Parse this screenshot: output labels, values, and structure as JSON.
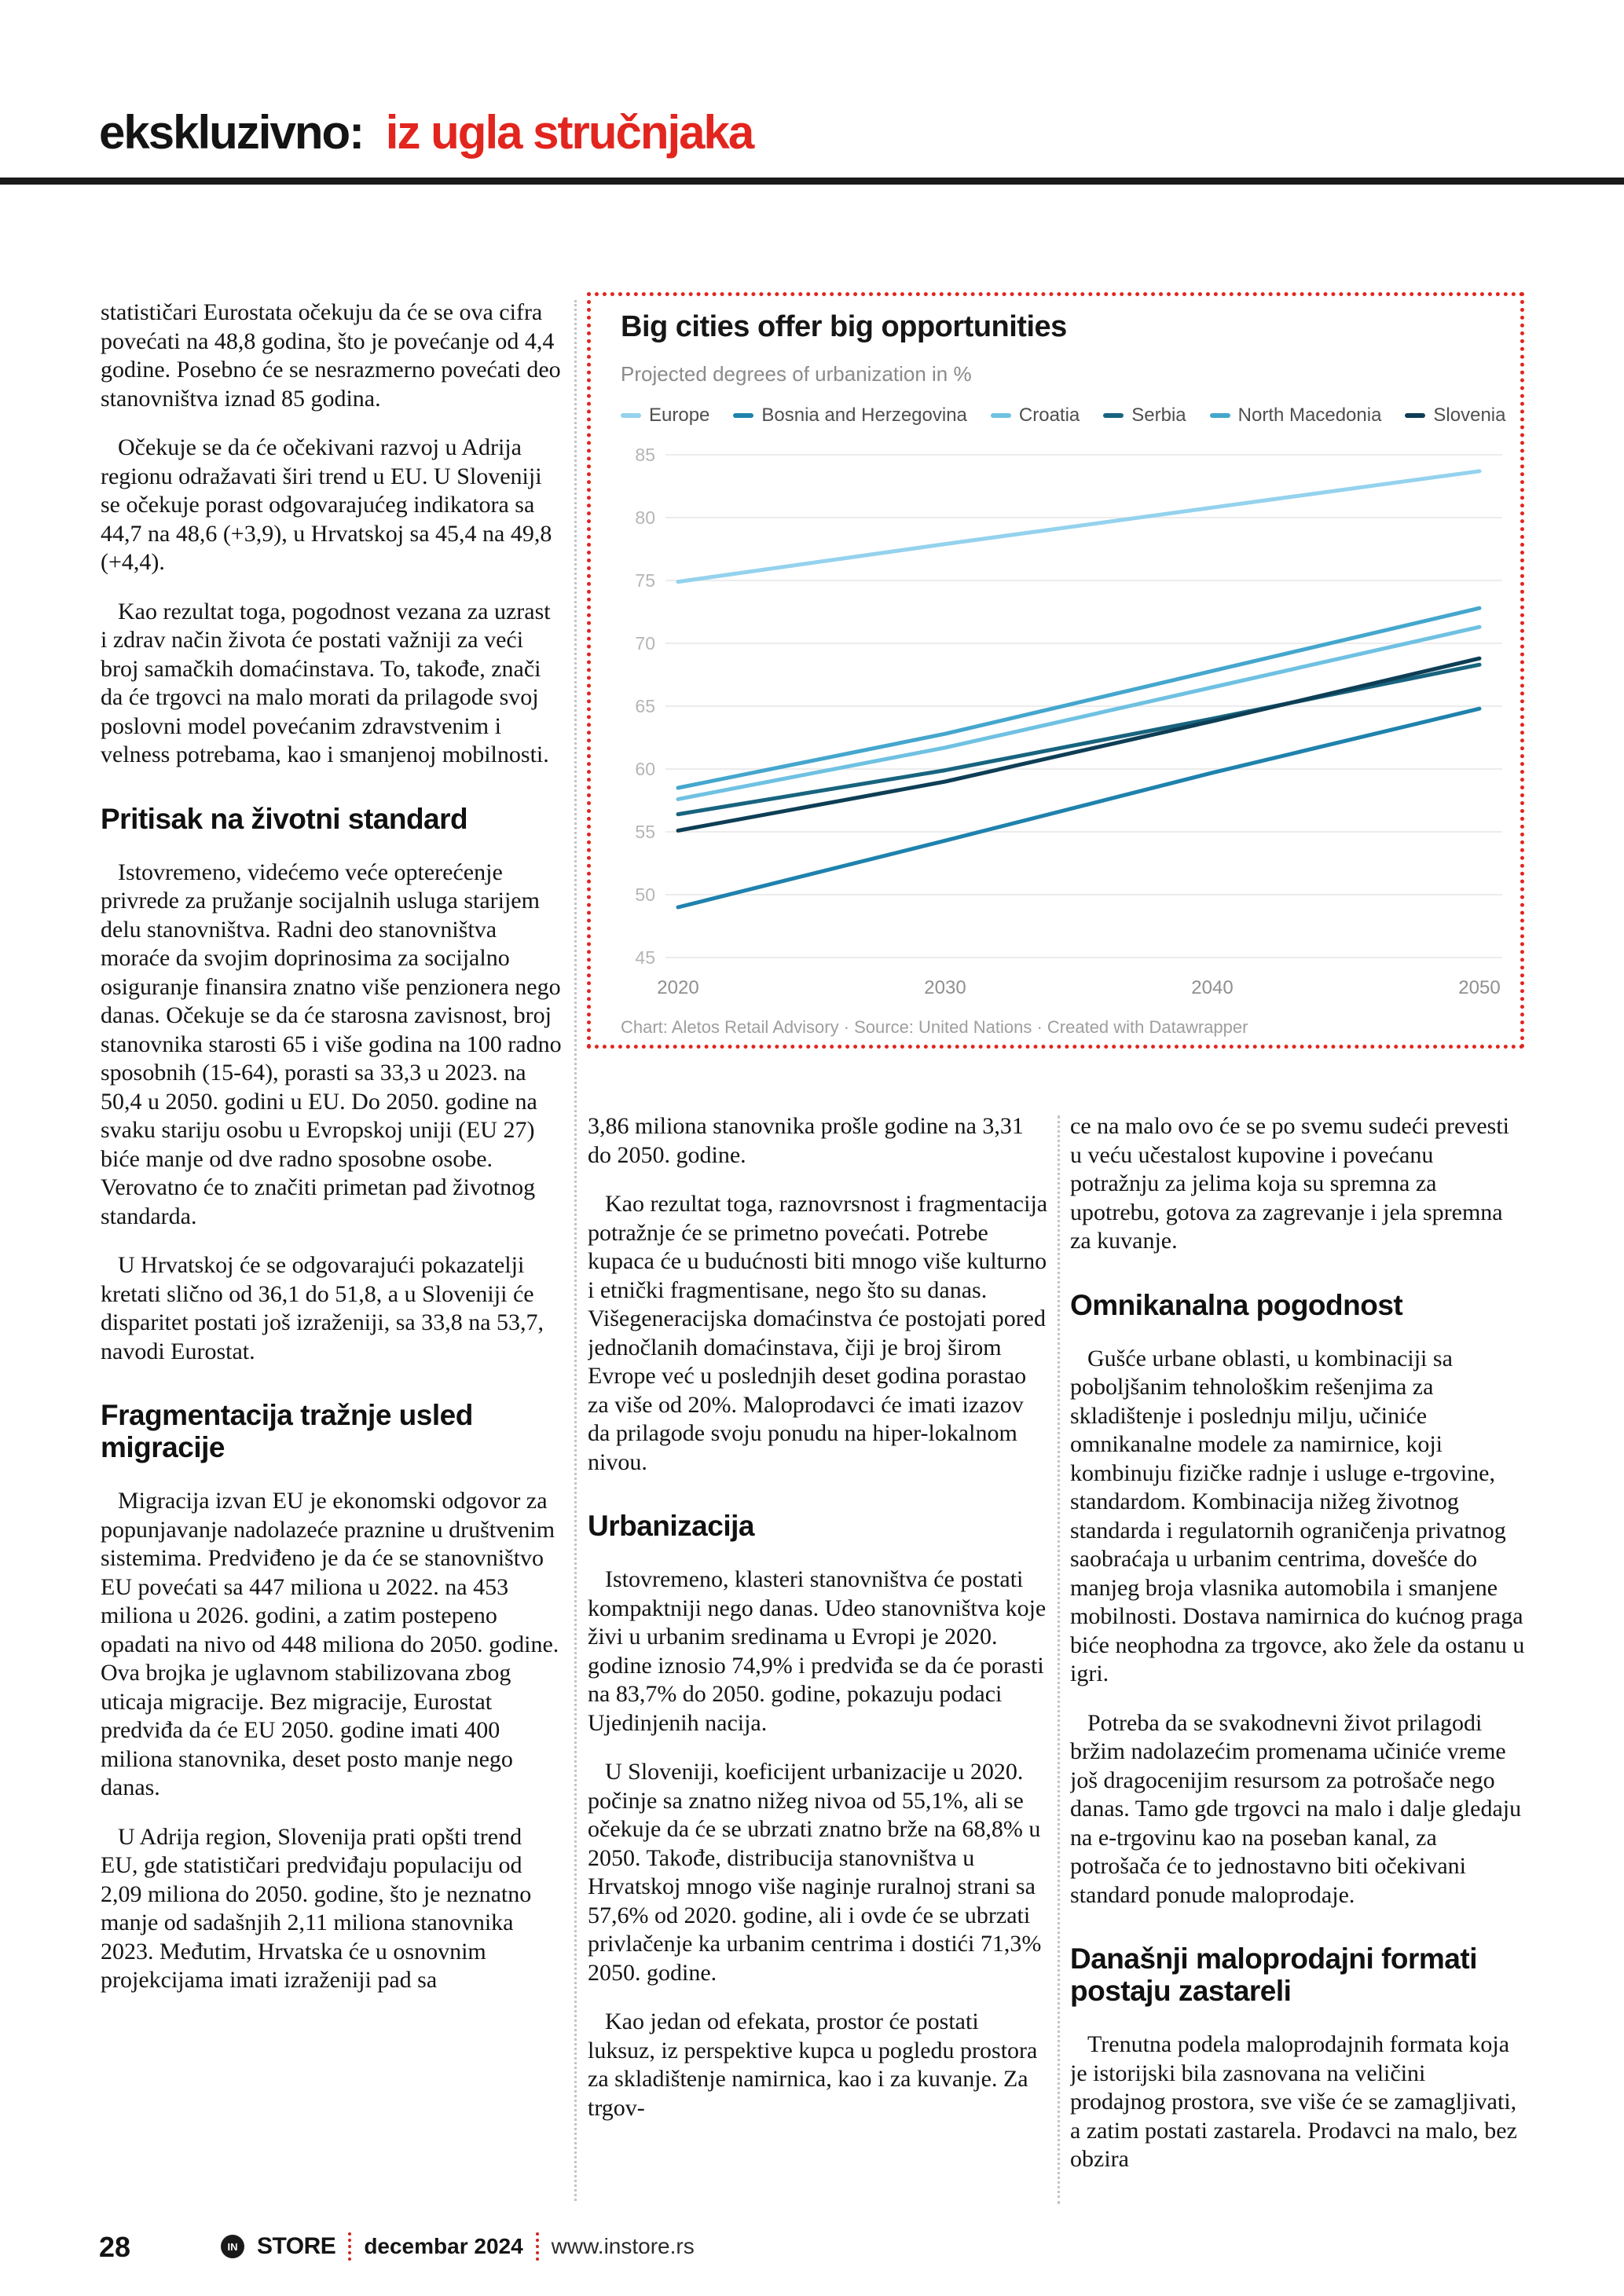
{
  "header": {
    "black_text": "ekskluzivno:",
    "red_text": "iz ugla stručnjaka",
    "accent_color": "#e2251e"
  },
  "chart_data": {
    "type": "line",
    "title": "Big cities offer big opportunities",
    "subtitle": "Projected degrees of urbanization in %",
    "caption": "Chart: Aletos Retail Advisory · Source: United Nations · Created with Datawrapper",
    "x": [
      2020,
      2030,
      2040,
      2050
    ],
    "xlabel": "",
    "ylabel": "",
    "ylim": [
      45,
      85
    ],
    "yticks": [
      45,
      50,
      55,
      60,
      65,
      70,
      75,
      80,
      85
    ],
    "grid": true,
    "legend_position": "top",
    "border_color": "#e2251e",
    "series": [
      {
        "name": "Europe",
        "color": "#94d2ed",
        "values": [
          74.9,
          77.9,
          80.8,
          83.7
        ]
      },
      {
        "name": "Bosnia and Herzegovina",
        "color": "#1f82ad",
        "values": [
          49.0,
          54.3,
          59.7,
          64.8
        ]
      },
      {
        "name": "Croatia",
        "color": "#6fc1e2",
        "values": [
          57.6,
          61.7,
          66.5,
          71.3
        ]
      },
      {
        "name": "Serbia",
        "color": "#18647f",
        "values": [
          56.4,
          59.9,
          64.0,
          68.3
        ]
      },
      {
        "name": "North Macedonia",
        "color": "#45a6cd",
        "values": [
          58.5,
          62.8,
          67.8,
          72.8
        ]
      },
      {
        "name": "Slovenia",
        "color": "#0e3e55",
        "values": [
          55.1,
          59.0,
          63.8,
          68.8
        ]
      }
    ]
  },
  "article": {
    "columns": [
      {
        "blocks": [
          {
            "t": "p",
            "cont": true,
            "text": "statističari Eurostata očekuju da će se ova cifra povećati na 48,8 godina, što je povećanje od 4,4 godine. Posebno će se nesrazmerno povećati deo stanovništva iznad 85 godina."
          },
          {
            "t": "p",
            "text": "Očekuje se da će očekivani razvoj u Adrija regionu odražavati širi trend u EU. U Sloveniji se očekuje porast odgovarajućeg indikatora sa 44,7 na 48,6 (+3,9), u Hrvatskoj sa 45,4 na 49,8 (+4,4)."
          },
          {
            "t": "p",
            "text": "Kao rezultat toga, pogodnost vezana za uzrast i zdrav način života će postati važniji za veći broj samačkih domaćinstava. To, takođe, znači da će trgovci na malo morati da prilagode svoj poslovni model povećanim zdravstvenim i velness potrebama, kao i smanjenoj mobilnosti."
          },
          {
            "t": "h",
            "text": "Pritisak na životni standard"
          },
          {
            "t": "p",
            "text": "Istovremeno, videćemo veće opterećenje privrede za pružanje socijalnih usluga starijem delu stanovništva. Radni deo stanovništva moraće da svojim doprinosima za socijalno osiguranje finansira znatno više penzionera nego danas. Očekuje se da će starosna zavisnost, broj stanovnika starosti 65 i više godina na 100 radno sposobnih (15-64), porasti sa 33,3 u 2023. na 50,4 u 2050. godini u EU. Do 2050. godine na svaku stariju osobu u Evropskoj uniji (EU 27) biće manje od dve radno sposobne osobe. Verovatno će to značiti primetan pad životnog standarda."
          },
          {
            "t": "p",
            "text": "U Hrvatskoj će se odgovarajući pokazatelji kretati slično od 36,1 do 51,8, a u Sloveniji će disparitet postati još izraženiji, sa 33,8 na 53,7, navodi Eurostat."
          },
          {
            "t": "h",
            "text": "Fragmentacija tražnje usled migracije"
          },
          {
            "t": "p",
            "text": "Migracija izvan EU je ekonomski odgovor za popunjavanje nadolazeće praznine u društvenim sistemima. Predviđeno je da će se stanovništvo EU povećati sa 447 miliona u 2022. na 453 miliona u 2026. godini, a zatim postepeno opadati na nivo od 448 miliona do 2050. godine. Ova brojka je uglavnom stabilizovana zbog uticaja migracije. Bez migracije, Eurostat predviđa da će EU 2050. godine imati 400 miliona stanovnika, deset posto manje nego danas."
          },
          {
            "t": "p",
            "text": "U Adrija region, Slovenija prati opšti trend EU, gde statističari predviđaju populaciju od 2,09 miliona do 2050. godine, što je neznatno manje od sadašnjih 2,11 miliona stanovnika 2023. Međutim, Hrvatska će u osnovnim projekcijama imati izraženiji pad sa"
          }
        ]
      },
      {
        "blocks": [
          {
            "t": "p",
            "cont": true,
            "text": "3,86 miliona stanovnika prošle godine na 3,31 do 2050. godine."
          },
          {
            "t": "p",
            "text": "Kao rezultat toga, raznovrsnost i fragmentacija potražnje će se primetno povećati. Potrebe kupaca će u budućnosti biti mnogo više kulturno i etnički fragmentisane, nego što su danas. Višegeneracijska domaćinstva će postojati pored jednočlanih domaćinstava, čiji je broj širom Evrope već u poslednjih deset godina porastao za više od 20%. Maloprodavci će imati izazov da prilagode svoju ponudu na hiper-lokalnom nivou."
          },
          {
            "t": "h",
            "text": "Urbanizacija"
          },
          {
            "t": "p",
            "text": "Istovremeno, klasteri stanovništva će postati kompaktniji nego danas. Udeo stanovništva koje živi u urbanim sredinama u Evropi je 2020. godine iznosio 74,9% i predviđa se da će porasti na 83,7% do 2050. godine, pokazuju podaci Ujedinjenih nacija."
          },
          {
            "t": "p",
            "text": "U Sloveniji, koeficijent urbanizacije u 2020. počinje sa znatno nižeg nivoa od 55,1%, ali se očekuje da će se ubrzati znatno brže na 68,8% u 2050. Takođe, distribucija stanovništva u Hrvatskoj mnogo više naginje ruralnoj strani sa 57,6% od 2020. godine, ali i ovde će se ubrzati privlačenje ka urbanim centrima i dostići 71,3% 2050. godine."
          },
          {
            "t": "p",
            "text": "Kao jedan od efekata, prostor će postati luksuz, iz perspektive kupca u pogledu prostora za skladištenje namirnica, kao i za kuvanje. Za trgov-"
          }
        ]
      },
      {
        "blocks": [
          {
            "t": "p",
            "cont": true,
            "text": "ce na malo ovo će se po svemu sudeći prevesti u veću učestalost kupovine i povećanu potražnju za jelima koja su spremna za upotrebu, gotova za zagrevanje i jela spremna za kuvanje."
          },
          {
            "t": "h",
            "text": "Omnikanalna pogodnost"
          },
          {
            "t": "p",
            "text": "Gušće urbane oblasti, u kombinaciji sa poboljšanim tehnološkim rešenjima za skladištenje i poslednju milju, učiniće omnikanalne modele za namirnice, koji kombinuju fizičke radnje i usluge e-trgovine, standardom. Kombinacija nižeg životnog standarda i regulatornih ograničenja privatnog saobraćaja u urbanim centrima, dovešće do manjeg broja vlasnika automobila i smanjene mobilnosti. Dostava namirnica do kućnog praga biće neophodna za trgovce, ako žele da ostanu u igri."
          },
          {
            "t": "p",
            "text": "Potreba da se svakodnevni život prilagodi bržim nadolazećim promenama učiniće vreme još dragocenijim resursom za potrošače nego danas. Tamo gde trgovci na malo i dalje gledaju na e-trgovinu kao na poseban kanal, za potrošača će to jednostavno biti očekivani standard ponude maloprodaje."
          },
          {
            "t": "h",
            "text": "Današnji maloprodajni formati postaju zastareli"
          },
          {
            "t": "p",
            "text": "Trenutna podela maloprodajnih formata koja je istorijski bila zasnovana na veličini prodajnog prostora, sve više će se zamagljivati, a zatim postati zastarela. Prodavci na malo, bez obzira"
          }
        ]
      }
    ]
  },
  "footer": {
    "page_number": "28",
    "logo_monogram": "IN",
    "store_label": "STORE",
    "issue": "decembar 2024",
    "website": "www.instore.rs"
  }
}
